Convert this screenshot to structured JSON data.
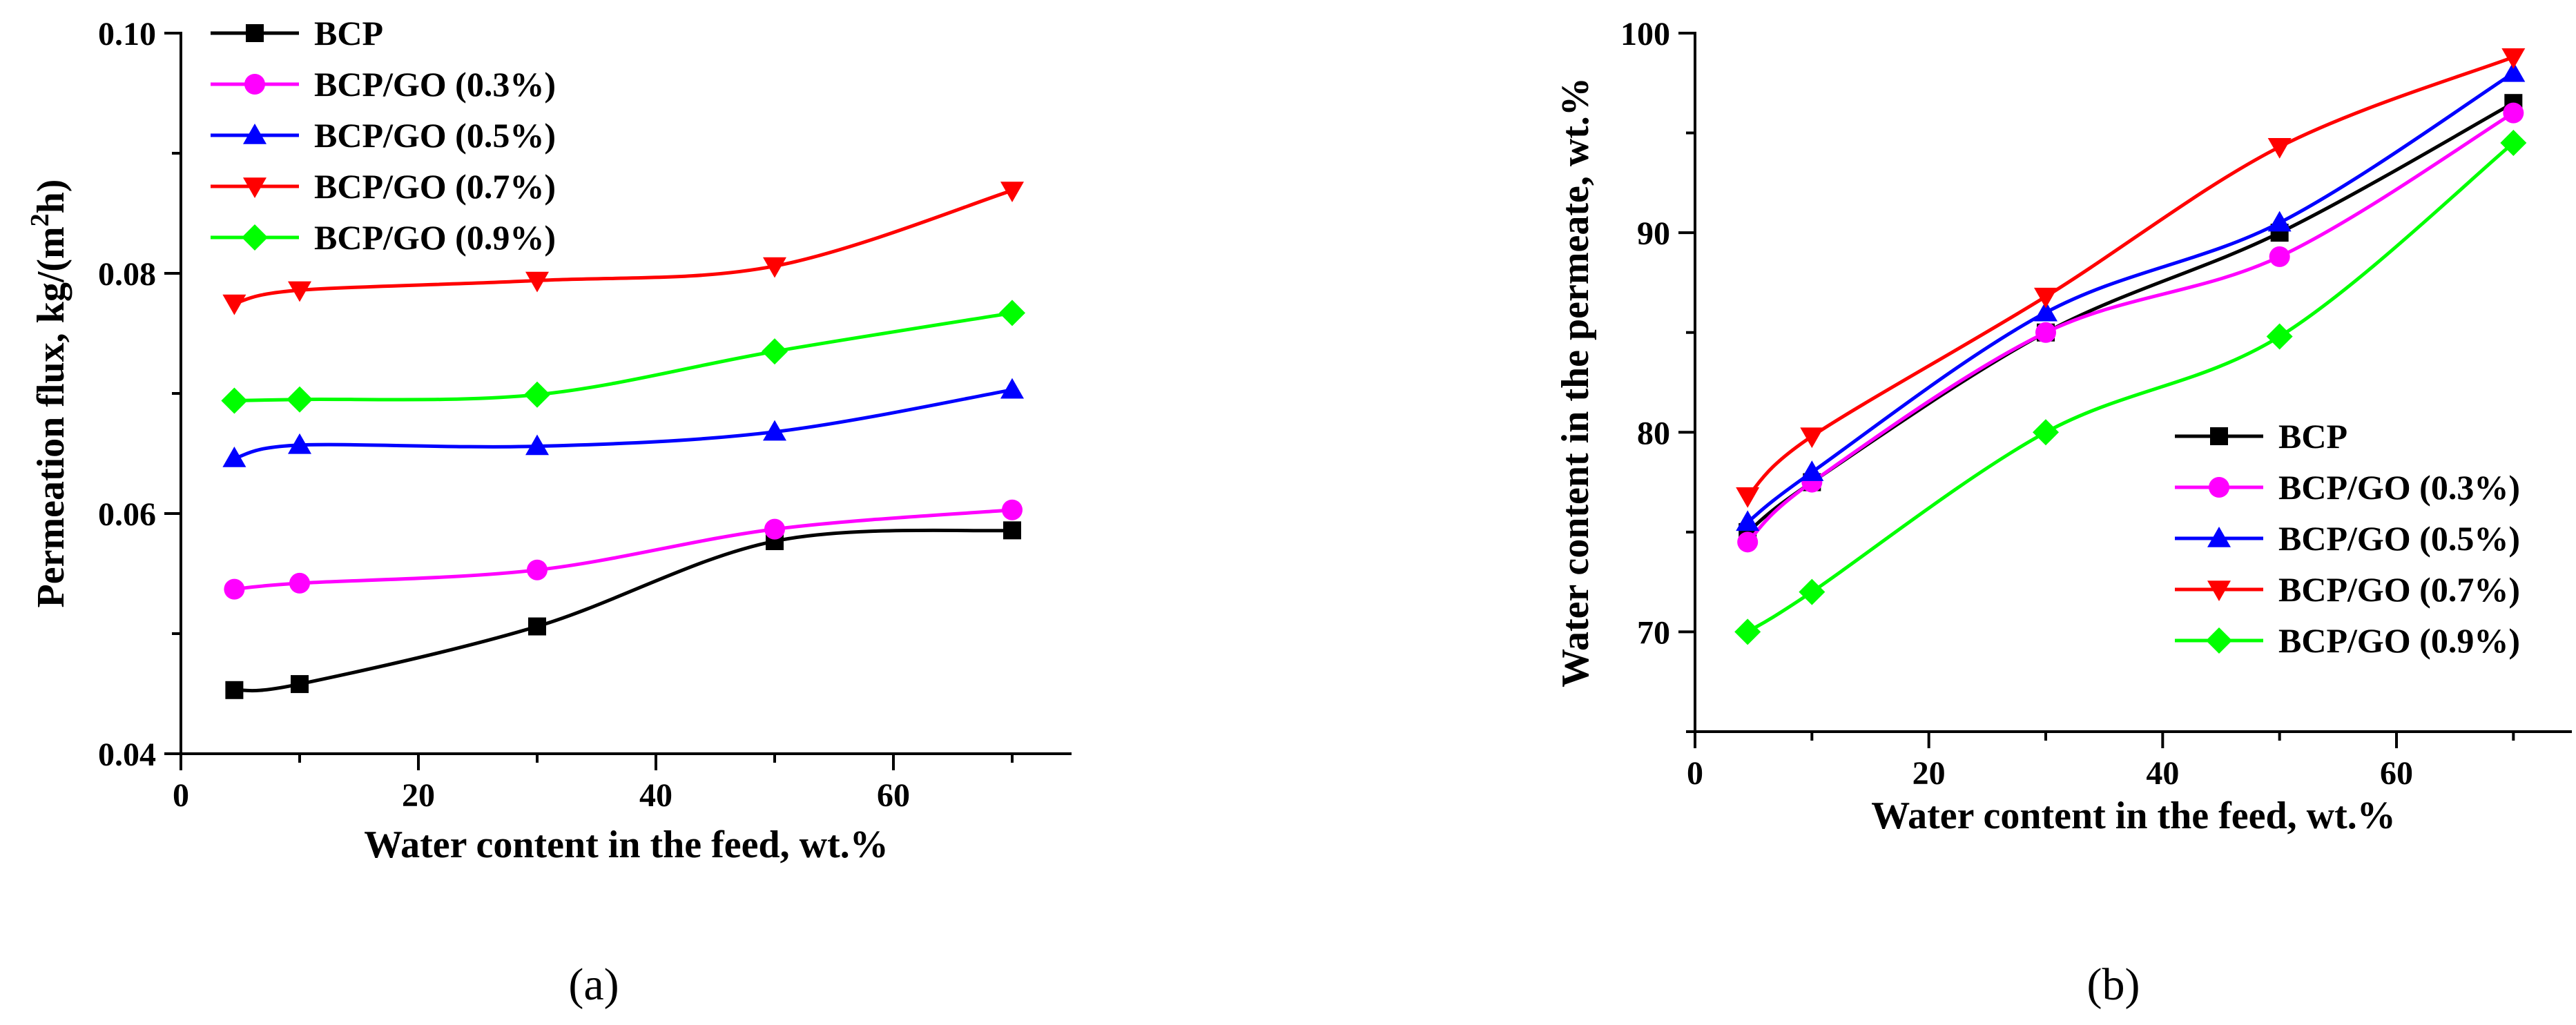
{
  "chart_data": [
    {
      "type": "line",
      "panel_label": "(a)",
      "title": "",
      "xlabel": "Water content in the feed, wt.%",
      "ylabel_main": "Permeation flux, kg/(m",
      "ylabel_sup": "2",
      "ylabel_end": "h)",
      "xlim": [
        0,
        75
      ],
      "ylim": [
        0.04,
        0.1
      ],
      "xticks": [
        0,
        20,
        40,
        60
      ],
      "xtick_labels": [
        "0",
        "20",
        "40",
        "60"
      ],
      "yticks": [
        0.04,
        0.06,
        0.08,
        0.1
      ],
      "ytick_labels": [
        "0.04",
        "0.06",
        "0.08",
        "0.10"
      ],
      "legend_position": "top-left",
      "x": [
        4.5,
        10,
        30,
        50,
        70
      ],
      "series": [
        {
          "name": "BCP",
          "color": "#000000",
          "marker": "square",
          "values": [
            0.0453,
            0.0458,
            0.0506,
            0.0577,
            0.0586
          ]
        },
        {
          "name": "BCP/GO (0.3%)",
          "color": "#ff00ff",
          "marker": "circle",
          "values": [
            0.0537,
            0.0542,
            0.0553,
            0.0587,
            0.0603
          ]
        },
        {
          "name": "BCP/GO (0.5%)",
          "color": "#0000ff",
          "marker": "triangle-up",
          "values": [
            0.0646,
            0.0657,
            0.0656,
            0.0668,
            0.0703
          ]
        },
        {
          "name": "BCP/GO (0.7%)",
          "color": "#ff0000",
          "marker": "triangle-down",
          "values": [
            0.0775,
            0.0786,
            0.0794,
            0.0806,
            0.0869
          ]
        },
        {
          "name": "BCP/GO (0.9%)",
          "color": "#00ff00",
          "marker": "diamond",
          "values": [
            0.0694,
            0.0695,
            0.0699,
            0.0735,
            0.0767
          ]
        }
      ]
    },
    {
      "type": "line",
      "panel_label": "(b)",
      "title": "",
      "xlabel": "Water content in the feed, wt.%",
      "ylabel_main": "Water content in the permeate, wt.%",
      "xlim": [
        0,
        75
      ],
      "ylim": [
        65,
        100
      ],
      "xticks": [
        0,
        20,
        40,
        60
      ],
      "xtick_labels": [
        "0",
        "20",
        "40",
        "60"
      ],
      "yticks": [
        70,
        80,
        90,
        100
      ],
      "ytick_labels": [
        "70",
        "80",
        "90",
        "100"
      ],
      "legend_position": "bottom-right",
      "x": [
        4.5,
        10,
        30,
        50,
        70
      ],
      "series": [
        {
          "name": "BCP",
          "color": "#000000",
          "marker": "square",
          "values": [
            75.0,
            77.5,
            85.0,
            90.0,
            96.5
          ]
        },
        {
          "name": "BCP/GO (0.3%)",
          "color": "#ff00ff",
          "marker": "circle",
          "values": [
            74.5,
            77.5,
            85.0,
            88.8,
            96.0
          ]
        },
        {
          "name": "BCP/GO (0.5%)",
          "color": "#0000ff",
          "marker": "triangle-up",
          "values": [
            75.5,
            78.0,
            86.0,
            90.5,
            98.0
          ]
        },
        {
          "name": "BCP/GO (0.7%)",
          "color": "#ff0000",
          "marker": "triangle-down",
          "values": [
            76.8,
            79.8,
            86.8,
            94.3,
            98.8
          ]
        },
        {
          "name": "BCP/GO (0.9%)",
          "color": "#00ff00",
          "marker": "diamond",
          "values": [
            70.0,
            72.0,
            80.0,
            84.8,
            94.5
          ]
        }
      ]
    }
  ]
}
